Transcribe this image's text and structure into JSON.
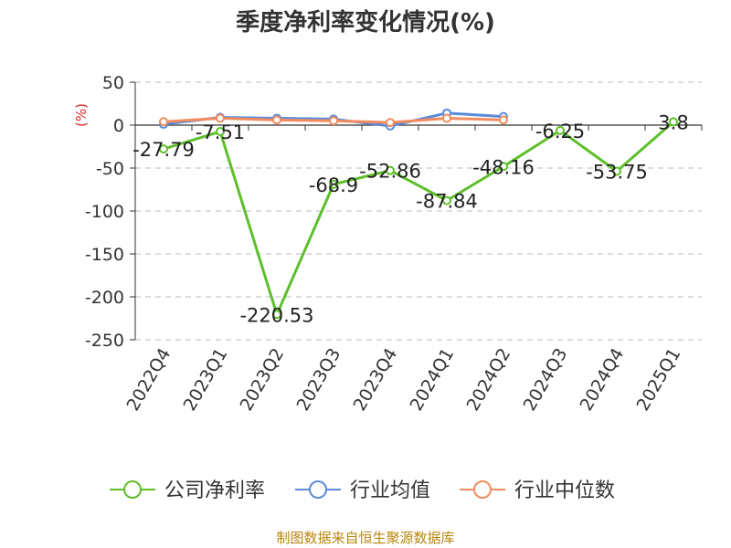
{
  "chart_data": {
    "type": "line",
    "title": "季度净利率变化情况(%)",
    "ylabel": "(%)",
    "xlabel": "",
    "categories": [
      "2022Q4",
      "2023Q1",
      "2023Q2",
      "2023Q3",
      "2023Q4",
      "2024Q1",
      "2024Q2",
      "2024Q3",
      "2024Q4",
      "2025Q1"
    ],
    "ylim": [
      -250,
      50
    ],
    "yticks": [
      50,
      0,
      -50,
      -100,
      -150,
      -200,
      -250
    ],
    "grid": true,
    "legend_position": "bottom",
    "series": [
      {
        "name": "公司净利率",
        "color": "#5dbf2a",
        "values": [
          -27.79,
          -7.51,
          -220.53,
          -68.9,
          -52.86,
          -87.84,
          -48.16,
          -6.25,
          -53.75,
          3.8
        ],
        "labels": [
          "-27.79",
          "-7.51",
          "-220.53",
          "-68.9",
          "-52.86",
          "-87.84",
          "-48.16",
          "-6.25",
          "-53.75",
          "3.8"
        ]
      },
      {
        "name": "行业均值",
        "color": "#5b8bd9",
        "values": [
          1,
          9,
          8,
          7,
          -1,
          14,
          10,
          null,
          null,
          null
        ]
      },
      {
        "name": "行业中位数",
        "color": "#f28c5f",
        "values": [
          4,
          8,
          6,
          5,
          3,
          8,
          6,
          null,
          null,
          null
        ]
      }
    ]
  },
  "source": "制图数据来自恒生聚源数据库"
}
